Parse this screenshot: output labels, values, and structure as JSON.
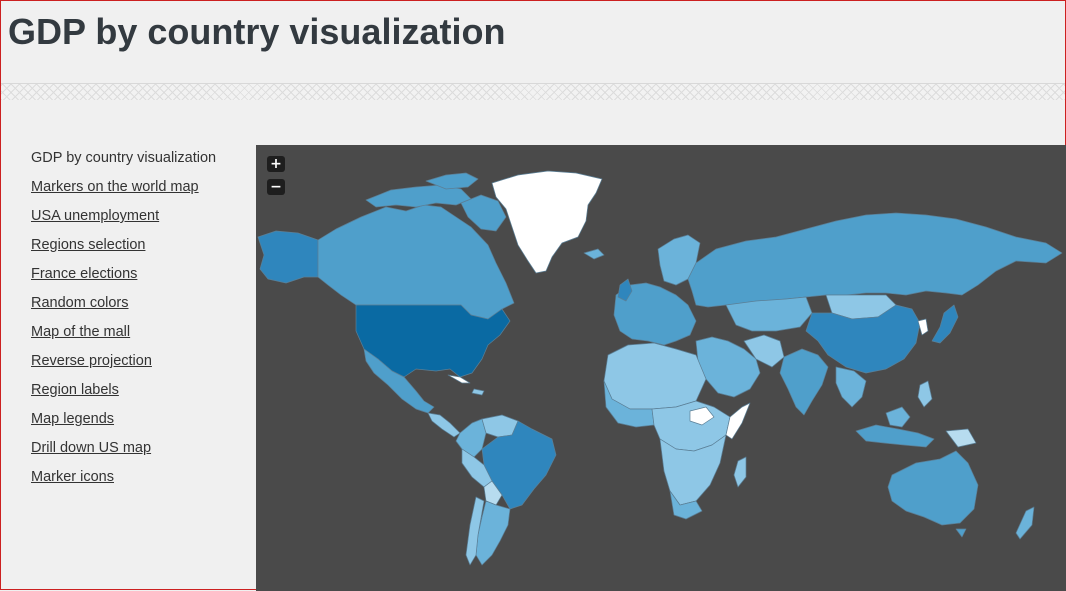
{
  "header": {
    "title": "GDP by country visualization"
  },
  "sidebar": {
    "items": [
      {
        "label": "GDP by country visualization",
        "active": true
      },
      {
        "label": "Markers on the world map"
      },
      {
        "label": "USA unemployment"
      },
      {
        "label": "Regions selection"
      },
      {
        "label": "France elections"
      },
      {
        "label": "Random colors"
      },
      {
        "label": "Map of the mall"
      },
      {
        "label": "Reverse projection"
      },
      {
        "label": "Region labels"
      },
      {
        "label": "Map legends"
      },
      {
        "label": "Drill down US map"
      },
      {
        "label": "Marker icons"
      }
    ]
  },
  "map": {
    "zoom_in_label": "+",
    "zoom_out_label": "−",
    "background_color": "#4a4a4a",
    "color_scale": [
      "#ffffff",
      "#b7dcef",
      "#8ec7e6",
      "#6bb3da",
      "#4f9fcb",
      "#2f86bd",
      "#0a6aa3"
    ]
  }
}
